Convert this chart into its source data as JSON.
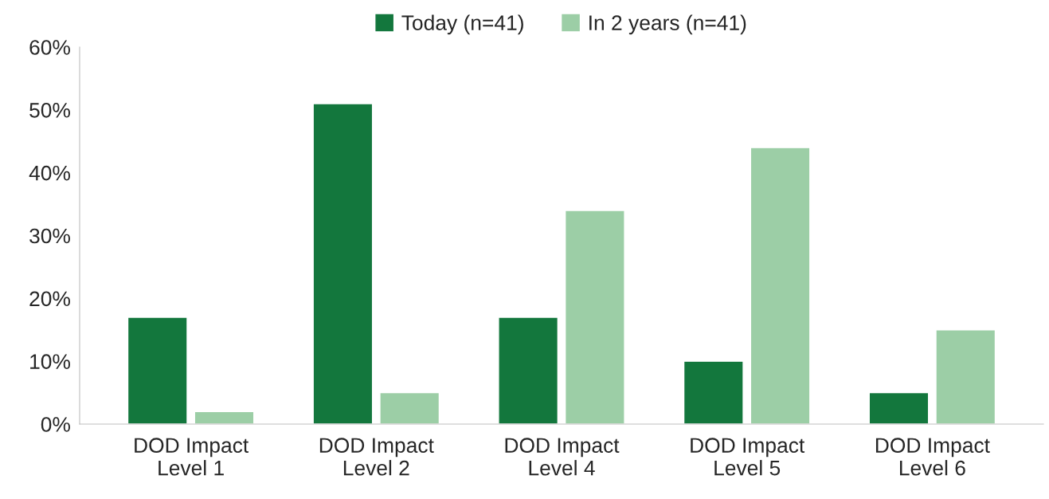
{
  "chart_data": {
    "type": "bar",
    "categories": [
      "DOD Impact\nLevel 1",
      "DOD Impact\nLevel 2",
      "DOD Impact\nLevel 4",
      "DOD Impact\nLevel 5",
      "DOD Impact\nLevel 6"
    ],
    "series": [
      {
        "name": "Today (n=41)",
        "color": "#13773d",
        "values": [
          17,
          51,
          17,
          10,
          5
        ]
      },
      {
        "name": "In 2 years (n=41)",
        "color": "#9ccea6",
        "values": [
          2,
          5,
          34,
          44,
          15
        ]
      }
    ],
    "ylim": [
      0,
      60
    ],
    "yticks": [
      {
        "value": 0,
        "label": "0%"
      },
      {
        "value": 10,
        "label": "10%"
      },
      {
        "value": 20,
        "label": "20%"
      },
      {
        "value": 30,
        "label": "30%"
      },
      {
        "value": 40,
        "label": "40%"
      },
      {
        "value": 50,
        "label": "50%"
      },
      {
        "value": 60,
        "label": "60%"
      }
    ],
    "grid": false,
    "legend": "top"
  }
}
